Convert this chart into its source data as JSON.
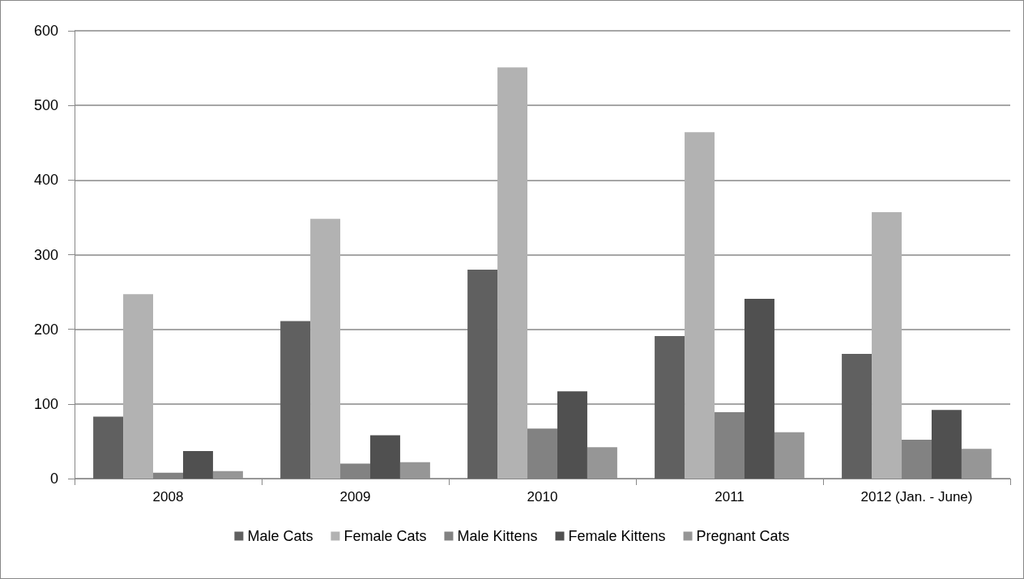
{
  "chart_data": {
    "type": "bar",
    "categories": [
      "2008",
      "2009",
      "2010",
      "2011",
      "2012 (Jan. - June)"
    ],
    "series": [
      {
        "name": "Male Cats",
        "color": "#606060",
        "values": [
          83,
          211,
          280,
          191,
          167
        ]
      },
      {
        "name": "Female Cats",
        "color": "#b2b2b2",
        "values": [
          247,
          348,
          551,
          464,
          357
        ]
      },
      {
        "name": "Male Kittens",
        "color": "#828282",
        "values": [
          8,
          20,
          67,
          89,
          52
        ]
      },
      {
        "name": "Female Kittens",
        "color": "#505050",
        "values": [
          37,
          58,
          117,
          241,
          92
        ]
      },
      {
        "name": "Pregnant Cats",
        "color": "#969696",
        "values": [
          10,
          22,
          42,
          62,
          40
        ]
      }
    ],
    "ylim": [
      0,
      600
    ],
    "yticks": [
      0,
      100,
      200,
      300,
      400,
      500,
      600
    ],
    "grid": "y",
    "legend": "bottom"
  }
}
